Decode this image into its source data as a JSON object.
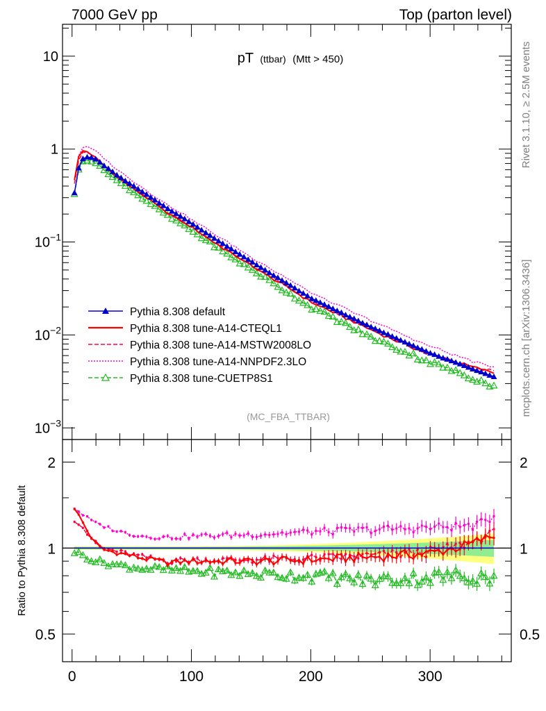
{
  "header": {
    "left": "7000 GeV pp",
    "right": "Top (parton level)"
  },
  "side_labels": {
    "rivet": "Rivet 3.1.10, ≥ 2.5M events",
    "mcplots": "mcplots.cern.ch [arXiv:1306.3436]"
  },
  "chart_data": [
    {
      "type": "line",
      "panel": "main",
      "title": "pT",
      "title_small": "(ttbar)",
      "title_suffix": "(Mtt > 450)",
      "analysis_label": "(MC_FBA_TTBAR)",
      "xlabel": "",
      "ylabel": "",
      "xlim": [
        -8,
        368
      ],
      "ylim": [
        0.00075,
        22
      ],
      "yscale": "log",
      "yticks": [
        {
          "base": "10",
          "exp": "−3",
          "value": 0.001
        },
        {
          "base": "10",
          "exp": "−2",
          "value": 0.01
        },
        {
          "base": "10",
          "exp": "−1",
          "value": 0.1
        },
        {
          "base": "1",
          "exp": "",
          "value": 1
        },
        {
          "base": "10",
          "exp": "",
          "value": 10
        }
      ],
      "legend_position": "lower-left",
      "reference_curve": {
        "x": [
          2,
          6,
          10,
          15,
          20,
          30,
          40,
          60,
          80,
          100,
          120,
          150,
          180,
          200,
          250,
          300,
          350,
          357
        ],
        "y": [
          0.34,
          0.68,
          0.82,
          0.82,
          0.78,
          0.62,
          0.5,
          0.34,
          0.23,
          0.16,
          0.108,
          0.062,
          0.036,
          0.025,
          0.0123,
          0.0064,
          0.0037,
          0.0034
        ]
      },
      "series": [
        {
          "name": "Pythia 8.308 default",
          "color": "#0000cc",
          "marker": "triangle-filled",
          "dash": "solid",
          "ratio_points": [
            [
              2,
              1.0
            ],
            [
              357,
              1.0
            ]
          ]
        },
        {
          "name": "Pythia 8.308 tune-A14-CTEQL1",
          "color": "#ff0000",
          "marker": "none",
          "dash": "solid",
          "ratio_points": [
            [
              2,
              1.38
            ],
            [
              8,
              1.25
            ],
            [
              15,
              1.1
            ],
            [
              25,
              0.99
            ],
            [
              40,
              0.96
            ],
            [
              60,
              0.92
            ],
            [
              80,
              0.89
            ],
            [
              100,
              0.9
            ],
            [
              130,
              0.9
            ],
            [
              160,
              0.9
            ],
            [
              200,
              0.91
            ],
            [
              250,
              0.93
            ],
            [
              300,
              0.96
            ],
            [
              330,
              1.02
            ],
            [
              357,
              1.12
            ]
          ]
        },
        {
          "name": "Pythia 8.308 tune-A14-MSTW2008LO",
          "color": "#ff0044",
          "marker": "none",
          "dash": "dashed",
          "ratio_points": [
            [
              2,
              1.25
            ],
            [
              8,
              1.2
            ],
            [
              15,
              1.08
            ],
            [
              25,
              1.0
            ],
            [
              40,
              0.97
            ],
            [
              60,
              0.93
            ],
            [
              80,
              0.9
            ],
            [
              100,
              0.91
            ],
            [
              130,
              0.91
            ],
            [
              160,
              0.91
            ],
            [
              200,
              0.92
            ],
            [
              250,
              0.94
            ],
            [
              300,
              0.97
            ],
            [
              330,
              1.03
            ],
            [
              357,
              1.14
            ]
          ]
        },
        {
          "name": "Pythia 8.308 tune-A14-NNPDF2.3LO",
          "color": "#ff00cc",
          "marker": "none",
          "dash": "dotted",
          "ratio_points": [
            [
              2,
              1.38
            ],
            [
              10,
              1.3
            ],
            [
              20,
              1.22
            ],
            [
              40,
              1.14
            ],
            [
              60,
              1.1
            ],
            [
              80,
              1.09
            ],
            [
              100,
              1.1
            ],
            [
              130,
              1.11
            ],
            [
              160,
              1.12
            ],
            [
              200,
              1.14
            ],
            [
              250,
              1.16
            ],
            [
              300,
              1.18
            ],
            [
              340,
              1.2
            ],
            [
              357,
              1.32
            ]
          ]
        },
        {
          "name": "Pythia 8.308 tune-CUETP8S1",
          "color": "#22bb22",
          "marker": "triangle-open",
          "dash": "dashed",
          "ratio_points": [
            [
              2,
              0.97
            ],
            [
              10,
              0.94
            ],
            [
              20,
              0.9
            ],
            [
              40,
              0.87
            ],
            [
              60,
              0.85
            ],
            [
              80,
              0.84
            ],
            [
              100,
              0.83
            ],
            [
              130,
              0.82
            ],
            [
              160,
              0.81
            ],
            [
              200,
              0.8
            ],
            [
              250,
              0.77
            ],
            [
              300,
              0.79
            ],
            [
              330,
              0.8
            ],
            [
              357,
              0.79
            ]
          ]
        }
      ]
    },
    {
      "type": "line",
      "panel": "ratio",
      "ylabel": "Ratio to Pythia 8.308 default",
      "xlabel": "",
      "xlim": [
        -8,
        368
      ],
      "ylim": [
        0.4,
        2.4
      ],
      "yscale": "log",
      "yticks": [
        {
          "label": "0.5",
          "value": 0.5
        },
        {
          "label": "1",
          "value": 1
        },
        {
          "label": "2",
          "value": 2
        }
      ],
      "xticks": [
        {
          "label": "0",
          "value": 0
        },
        {
          "label": "100",
          "value": 100
        },
        {
          "label": "200",
          "value": 200
        },
        {
          "label": "300",
          "value": 300
        }
      ],
      "band_colors": {
        "inner": "#90ee90",
        "outer": "#ffff80"
      }
    }
  ]
}
